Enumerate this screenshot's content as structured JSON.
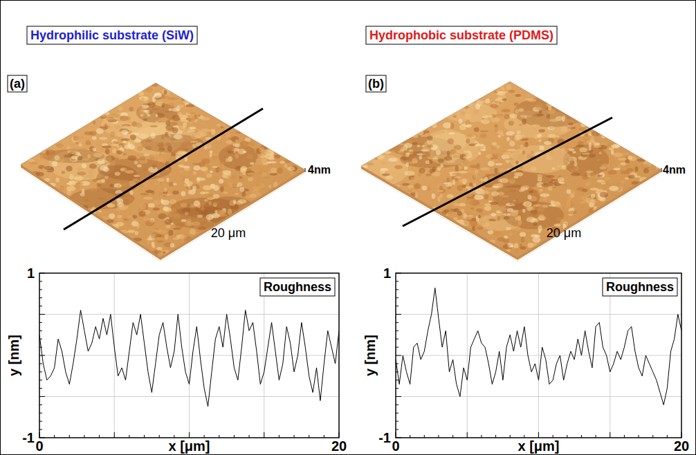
{
  "panels": [
    {
      "label": "(a)",
      "title": "Hydrophilic substrate (SiW)",
      "color": "#1f1fd0",
      "height_scale": "4nm",
      "width_scale": "20 μm"
    },
    {
      "label": "(b)",
      "title": "Hydrophobic substrate (PDMS)",
      "color": "#e01a1a",
      "height_scale": "4nm",
      "width_scale": "20 μm"
    }
  ],
  "chart_data": [
    {
      "type": "line",
      "xlabel": "x [μm]",
      "ylabel": "y [nm]",
      "xlim": [
        0,
        20
      ],
      "ylim": [
        -1,
        1
      ],
      "xticks": [
        0,
        20
      ],
      "yticks": [
        -1,
        1
      ],
      "grid": true,
      "legend": "upper right",
      "x": [
        0,
        0.25,
        0.5,
        0.75,
        1,
        1.25,
        1.5,
        1.75,
        2,
        2.25,
        2.5,
        2.75,
        3,
        3.25,
        3.5,
        3.75,
        4,
        4.25,
        4.5,
        4.75,
        5,
        5.25,
        5.5,
        5.75,
        6,
        6.25,
        6.5,
        6.75,
        7,
        7.25,
        7.5,
        7.75,
        8,
        8.25,
        8.5,
        8.75,
        9,
        9.25,
        9.5,
        9.75,
        10,
        10.25,
        10.5,
        10.75,
        11,
        11.25,
        11.5,
        11.75,
        12,
        12.25,
        12.5,
        12.75,
        13,
        13.25,
        13.5,
        13.75,
        14,
        14.25,
        14.5,
        14.75,
        15,
        15.25,
        15.5,
        15.75,
        16,
        16.25,
        16.5,
        16.75,
        17,
        17.25,
        17.5,
        17.75,
        18,
        18.25,
        18.5,
        18.75,
        19,
        19.25,
        19.5,
        19.75,
        20
      ],
      "series": [
        {
          "name": "Roughness",
          "color": "#000000",
          "values": [
            0.25,
            -0.1,
            -0.3,
            -0.25,
            -0.15,
            0.2,
            0.05,
            -0.2,
            -0.35,
            -0.1,
            0.2,
            0.55,
            0.3,
            0.05,
            0.15,
            0.35,
            0.2,
            0.45,
            0.25,
            0.5,
            0.1,
            -0.25,
            -0.15,
            -0.3,
            0.05,
            0.4,
            0.25,
            0.5,
            0.15,
            -0.2,
            -0.45,
            -0.1,
            0.25,
            0.4,
            0.1,
            -0.15,
            0.05,
            0.5,
            0.1,
            -0.2,
            -0.35,
            0.05,
            0.35,
            -0.05,
            -0.4,
            -0.62,
            -0.2,
            0.2,
            0.35,
            0.1,
            0.5,
            0.2,
            -0.15,
            -0.3,
            0.1,
            0.55,
            0.3,
            0.4,
            0.05,
            -0.35,
            -0.2,
            0.1,
            0.4,
            0.05,
            -0.3,
            -0.1,
            0.35,
            0.15,
            -0.2,
            0,
            0.4,
            0.1,
            -0.25,
            -0.45,
            -0.15,
            -0.55,
            -0.1,
            0.3,
            0.1,
            -0.1,
            0.3
          ]
        }
      ]
    },
    {
      "type": "line",
      "xlabel": "x [μm]",
      "ylabel": "y [nm]",
      "xlim": [
        0,
        20
      ],
      "ylim": [
        -1,
        1
      ],
      "xticks": [
        0,
        20
      ],
      "yticks": [
        -1,
        1
      ],
      "grid": true,
      "legend": "upper right",
      "x": [
        0,
        0.25,
        0.5,
        0.75,
        1,
        1.25,
        1.5,
        1.75,
        2,
        2.25,
        2.5,
        2.75,
        3,
        3.25,
        3.5,
        3.75,
        4,
        4.25,
        4.5,
        4.75,
        5,
        5.25,
        5.5,
        5.75,
        6,
        6.25,
        6.5,
        6.75,
        7,
        7.25,
        7.5,
        7.75,
        8,
        8.25,
        8.5,
        8.75,
        9,
        9.25,
        9.5,
        9.75,
        10,
        10.25,
        10.5,
        10.75,
        11,
        11.25,
        11.5,
        11.75,
        12,
        12.25,
        12.5,
        12.75,
        13,
        13.25,
        13.5,
        13.75,
        14,
        14.25,
        14.5,
        14.75,
        15,
        15.25,
        15.5,
        15.75,
        16,
        16.25,
        16.5,
        16.75,
        17,
        17.25,
        17.5,
        17.75,
        18,
        18.25,
        18.5,
        18.75,
        19,
        19.25,
        19.5,
        19.75,
        20
      ],
      "series": [
        {
          "name": "Roughness",
          "color": "#000000",
          "values": [
            -0.05,
            -0.35,
            0,
            -0.2,
            -0.35,
            0.1,
            0.15,
            -0.05,
            0.05,
            0.3,
            0.5,
            0.82,
            0.45,
            0.1,
            0.3,
            -0.2,
            -0.05,
            -0.35,
            -0.5,
            -0.15,
            -0.3,
            0.1,
            0.2,
            0.3,
            0.15,
            0.1,
            -0.1,
            -0.35,
            -0.2,
            0.05,
            -0.3,
            0.1,
            0.25,
            0.05,
            0.3,
            0.1,
            0.35,
            0,
            -0.2,
            -0.1,
            -0.3,
            0.1,
            -0.05,
            -0.35,
            -0.3,
            -0.1,
            0,
            -0.3,
            -0.1,
            0.05,
            -0.05,
            0.2,
            0,
            0.3,
            0.05,
            -0.15,
            0.35,
            0.4,
            0.1,
            0,
            -0.2,
            -0.1,
            0.05,
            -0.05,
            0.1,
            0.3,
            0.35,
            0.05,
            -0.15,
            -0.25,
            0,
            -0.1,
            -0.2,
            -0.3,
            -0.45,
            -0.6,
            -0.4,
            0.05,
            0.2,
            0.5,
            0.3
          ]
        }
      ]
    }
  ]
}
